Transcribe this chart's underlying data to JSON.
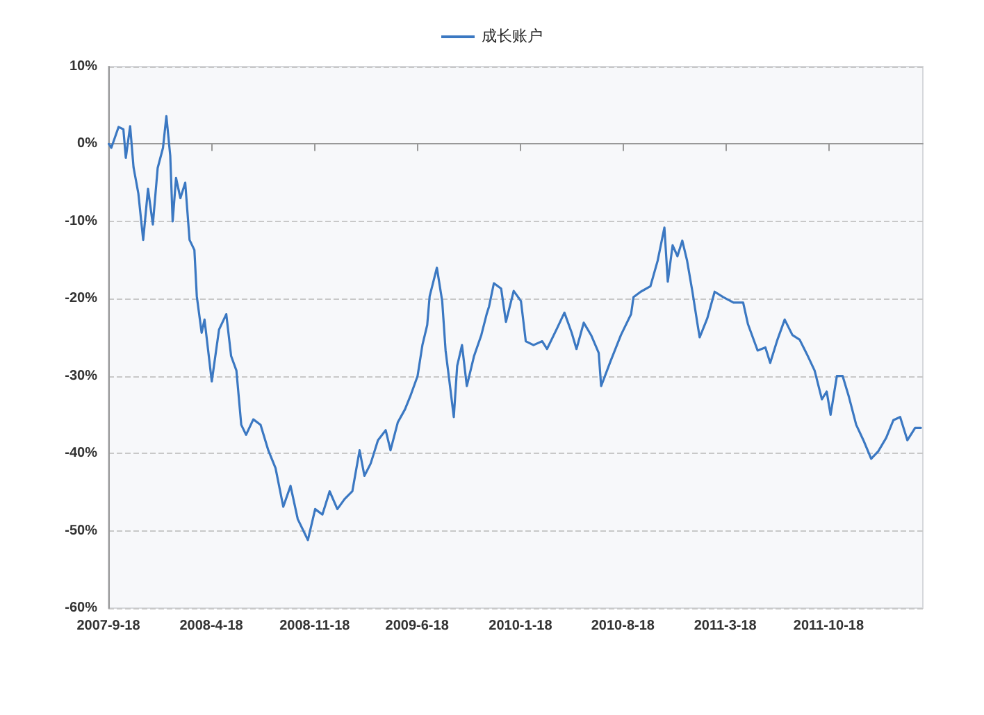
{
  "chart_data": {
    "type": "line",
    "series": [
      {
        "name": "成长账户",
        "color": "#3b78c2",
        "x": [
          "2007-09-19",
          "2007-09-24",
          "2007-10-09",
          "2007-10-19",
          "2007-10-24",
          "2007-11-02",
          "2007-11-09",
          "2007-11-19",
          "2007-11-29",
          "2007-12-09",
          "2007-12-19",
          "2007-12-29",
          "2008-01-09",
          "2008-01-16",
          "2008-01-24",
          "2008-01-29",
          "2008-02-05",
          "2008-02-14",
          "2008-02-24",
          "2008-03-04",
          "2008-03-14",
          "2008-03-19",
          "2008-03-29",
          "2008-04-04",
          "2008-04-19",
          "2008-05-04",
          "2008-05-19",
          "2008-05-29",
          "2008-06-09",
          "2008-06-19",
          "2008-06-29",
          "2008-07-14",
          "2008-07-29",
          "2008-08-14",
          "2008-08-29",
          "2008-09-14",
          "2008-09-29",
          "2008-10-14",
          "2008-11-04",
          "2008-11-19",
          "2008-12-04",
          "2008-12-19",
          "2009-01-04",
          "2009-01-19",
          "2009-02-04",
          "2009-02-19",
          "2009-03-01",
          "2009-03-14",
          "2009-03-29",
          "2009-04-14",
          "2009-04-24",
          "2009-05-09",
          "2009-05-24",
          "2009-06-04",
          "2009-06-19",
          "2009-06-29",
          "2009-07-09",
          "2009-07-14",
          "2009-07-29",
          "2009-08-09",
          "2009-08-16",
          "2009-08-24",
          "2009-09-02",
          "2009-09-09",
          "2009-09-19",
          "2009-09-29",
          "2009-10-14",
          "2009-10-29",
          "2009-11-09",
          "2009-11-14",
          "2009-11-24",
          "2009-12-09",
          "2009-12-19",
          "2010-01-04",
          "2010-01-19",
          "2010-01-29",
          "2010-02-14",
          "2010-03-04",
          "2010-03-14",
          "2010-04-04",
          "2010-04-19",
          "2010-05-04",
          "2010-05-14",
          "2010-05-29",
          "2010-06-14",
          "2010-06-29",
          "2010-07-04",
          "2010-07-24",
          "2010-08-14",
          "2010-09-04",
          "2010-09-09",
          "2010-09-24",
          "2010-10-14",
          "2010-10-29",
          "2010-11-12",
          "2010-11-19",
          "2010-11-29",
          "2010-12-09",
          "2010-12-19",
          "2010-12-29",
          "2011-01-09",
          "2011-01-19",
          "2011-01-24",
          "2011-02-09",
          "2011-02-24",
          "2011-03-14",
          "2011-04-04",
          "2011-04-24",
          "2011-05-04",
          "2011-05-24",
          "2011-06-09",
          "2011-06-19",
          "2011-07-04",
          "2011-07-19",
          "2011-08-04",
          "2011-08-19",
          "2011-09-04",
          "2011-09-19",
          "2011-10-04",
          "2011-10-14",
          "2011-10-22",
          "2011-11-04",
          "2011-11-16",
          "2011-11-29",
          "2011-12-14",
          "2011-12-29",
          "2012-01-14",
          "2012-01-29",
          "2012-02-14",
          "2012-02-29",
          "2012-03-14",
          "2012-03-29",
          "2012-04-14",
          "2012-04-26"
        ],
        "values": [
          0,
          -0.5,
          2.2,
          1.9,
          -1.8,
          2.3,
          -3,
          -6.4,
          -12.4,
          -5.8,
          -10.4,
          -3.1,
          -0.5,
          3.6,
          -1.5,
          -10,
          -4.4,
          -7,
          -5,
          -12.4,
          -13.7,
          -19.7,
          -24.4,
          -22.7,
          -30.7,
          -24,
          -22,
          -27.4,
          -29.3,
          -36.3,
          -37.6,
          -35.6,
          -36.3,
          -39.6,
          -41.9,
          -46.9,
          -44.2,
          -48.5,
          -51.2,
          -47.2,
          -47.9,
          -44.9,
          -47.2,
          -45.9,
          -44.9,
          -39.6,
          -42.9,
          -41.3,
          -38.3,
          -37,
          -39.6,
          -36,
          -34.3,
          -32.6,
          -30,
          -26,
          -23.4,
          -19.7,
          -16,
          -20.3,
          -26.7,
          -30.7,
          -35.3,
          -28.7,
          -26,
          -31.3,
          -27.4,
          -24.7,
          -22,
          -21,
          -18,
          -18.7,
          -23,
          -19,
          -20.3,
          -25.5,
          -26,
          -25.5,
          -26.5,
          -23.8,
          -21.8,
          -24.4,
          -26.5,
          -23.1,
          -24.8,
          -27,
          -31.3,
          -28,
          -24.7,
          -22,
          -19.8,
          -19.1,
          -18.4,
          -15.1,
          -10.8,
          -17.8,
          -13.1,
          -14.5,
          -12.5,
          -15.1,
          -19.1,
          -23.1,
          -25,
          -22.5,
          -19.1,
          -19.8,
          -20.5,
          -20.5,
          -23.3,
          -26.7,
          -26.3,
          -28.3,
          -25.3,
          -22.7,
          -24.7,
          -25.3,
          -27.3,
          -29.3,
          -33,
          -32,
          -35,
          -30,
          -30,
          -32.7,
          -36.3,
          -38.3,
          -40.7,
          -39.7,
          -38,
          -35.7,
          -35.3,
          -38.3,
          -36.7,
          -36.7
        ]
      }
    ],
    "xlim": [
      "2007-09-18",
      "2012-04-30"
    ],
    "xticks": [
      {
        "value": "2007-09-18",
        "label": "2007-9-18"
      },
      {
        "value": "2008-04-18",
        "label": "2008-4-18"
      },
      {
        "value": "2008-11-18",
        "label": "2008-11-18"
      },
      {
        "value": "2009-06-18",
        "label": "2009-6-18"
      },
      {
        "value": "2010-01-18",
        "label": "2010-1-18"
      },
      {
        "value": "2010-08-18",
        "label": "2010-8-18"
      },
      {
        "value": "2011-03-18",
        "label": "2011-3-18"
      },
      {
        "value": "2011-10-18",
        "label": "2011-10-18"
      }
    ],
    "ylim": [
      -60,
      10
    ],
    "yticks": [
      {
        "value": -60,
        "label": "-60%"
      },
      {
        "value": -50,
        "label": "-50%"
      },
      {
        "value": -40,
        "label": "-40%"
      },
      {
        "value": -30,
        "label": "-30%"
      },
      {
        "value": -20,
        "label": "-20%"
      },
      {
        "value": -10,
        "label": "-10%"
      },
      {
        "value": 0,
        "label": "0%"
      },
      {
        "value": 10,
        "label": "10%"
      }
    ],
    "grid": "y",
    "legend": "top",
    "marker": "none",
    "line_style": "solid"
  }
}
